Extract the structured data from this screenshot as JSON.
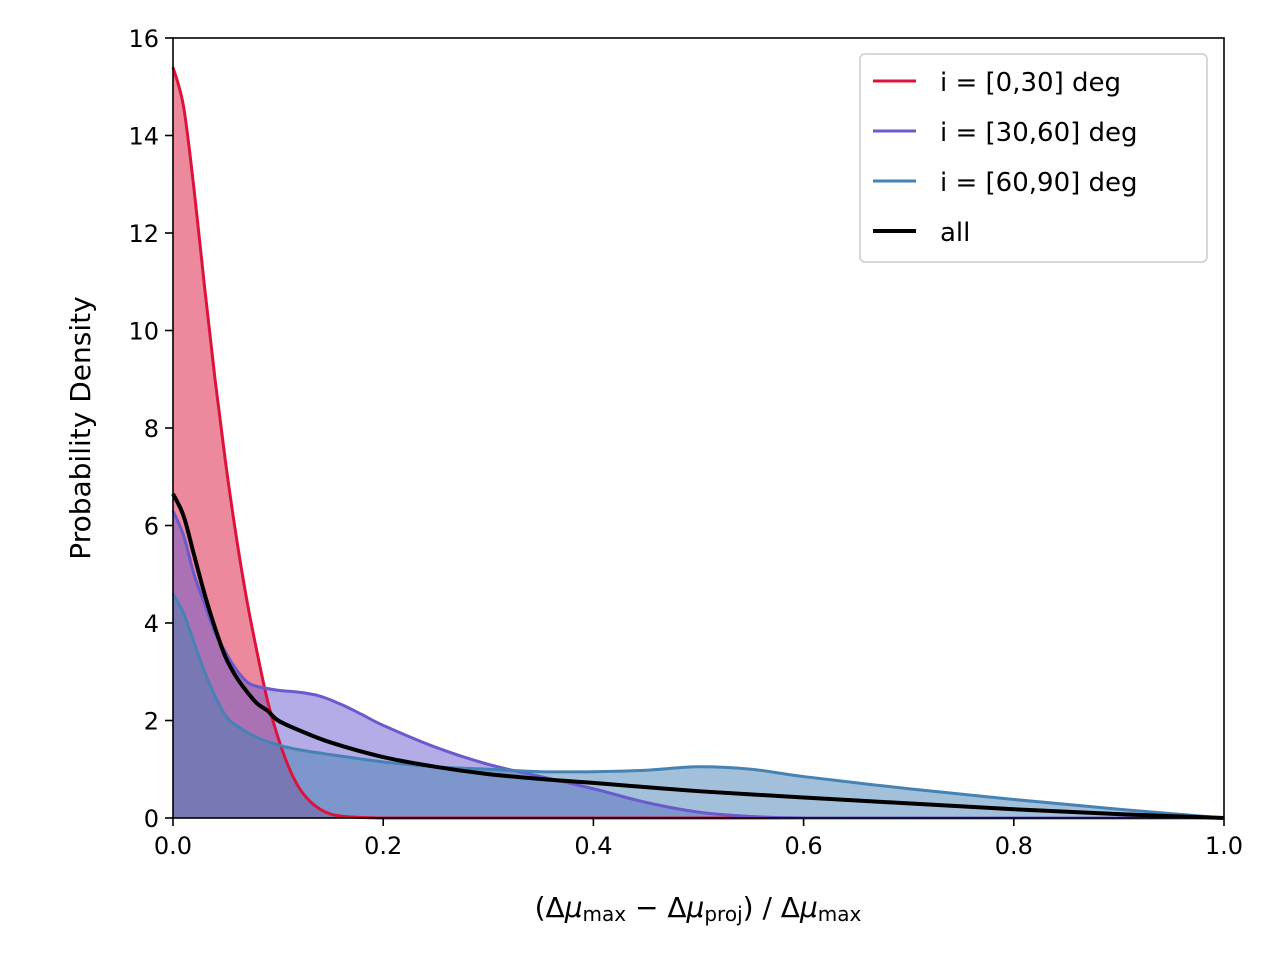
{
  "chart_data": {
    "type": "area",
    "xlabel": "(Δμ max − Δμ proj) / Δμ max",
    "xlabel_parts": {
      "open": "(Δ",
      "mu1": "μ",
      "sub_max1": "max",
      "minus": " − Δ",
      "mu2": "μ",
      "sub_proj": "proj",
      "close_div": ") / Δ",
      "mu3": "μ",
      "sub_max2": "max"
    },
    "ylabel": "Probability Density",
    "xlim": [
      0,
      1
    ],
    "ylim": [
      0,
      16
    ],
    "xticks": [
      0.0,
      0.2,
      0.4,
      0.6,
      0.8,
      1.0
    ],
    "xtick_labels": [
      "0.0",
      "0.2",
      "0.4",
      "0.6",
      "0.8",
      "1.0"
    ],
    "yticks": [
      0,
      2,
      4,
      6,
      8,
      10,
      12,
      14,
      16
    ],
    "ytick_labels": [
      "0",
      "2",
      "4",
      "6",
      "8",
      "10",
      "12",
      "14",
      "16"
    ],
    "grid": false,
    "legend_position": "top-right",
    "series": [
      {
        "name": "i = [0,30] deg",
        "color": "#dc143c",
        "fill": true,
        "x": [
          0,
          0.01,
          0.02,
          0.03,
          0.04,
          0.05,
          0.06,
          0.07,
          0.08,
          0.09,
          0.1,
          0.11,
          0.12,
          0.13,
          0.14,
          0.15,
          0.16,
          0.17,
          0.18,
          0.19,
          0.2,
          0.25,
          0.3,
          0.35,
          0.4,
          0.5,
          0.6,
          0.7,
          0.8,
          0.9,
          1.0
        ],
        "y": [
          15.4,
          14.6,
          12.9,
          10.9,
          9.0,
          7.3,
          5.8,
          4.5,
          3.4,
          2.4,
          1.65,
          1.05,
          0.62,
          0.35,
          0.18,
          0.08,
          0.04,
          0.02,
          0.01,
          0.005,
          0.0,
          0.0,
          0.0,
          0.0,
          0.0,
          0.0,
          0.0,
          0.0,
          0.0,
          0.0,
          0.0
        ]
      },
      {
        "name": "i = [30,60] deg",
        "color": "#6a5acd",
        "fill": true,
        "x": [
          0,
          0.01,
          0.02,
          0.03,
          0.04,
          0.05,
          0.06,
          0.07,
          0.08,
          0.1,
          0.12,
          0.14,
          0.16,
          0.18,
          0.2,
          0.25,
          0.3,
          0.35,
          0.4,
          0.45,
          0.5,
          0.55,
          0.6,
          0.7,
          0.8,
          0.9,
          1.0
        ],
        "y": [
          6.3,
          5.8,
          5.0,
          4.4,
          3.8,
          3.4,
          3.05,
          2.8,
          2.7,
          2.62,
          2.58,
          2.5,
          2.33,
          2.12,
          1.9,
          1.45,
          1.1,
          0.85,
          0.6,
          0.32,
          0.12,
          0.03,
          0.0,
          0.0,
          0.0,
          0.0,
          0.0
        ]
      },
      {
        "name": "i = [60,90] deg",
        "color": "#4682b4",
        "fill": true,
        "x": [
          0,
          0.01,
          0.02,
          0.03,
          0.04,
          0.05,
          0.06,
          0.08,
          0.1,
          0.12,
          0.15,
          0.2,
          0.25,
          0.3,
          0.35,
          0.4,
          0.45,
          0.5,
          0.55,
          0.6,
          0.7,
          0.8,
          0.9,
          1.0
        ],
        "y": [
          4.6,
          4.2,
          3.6,
          3.0,
          2.5,
          2.1,
          1.9,
          1.65,
          1.5,
          1.4,
          1.3,
          1.15,
          1.05,
          1.0,
          0.95,
          0.95,
          0.98,
          1.05,
          1.0,
          0.85,
          0.6,
          0.38,
          0.18,
          0.0
        ]
      },
      {
        "name": "all",
        "color": "#000000",
        "fill": false,
        "x": [
          0,
          0.01,
          0.02,
          0.03,
          0.04,
          0.05,
          0.06,
          0.07,
          0.08,
          0.09,
          0.1,
          0.12,
          0.15,
          0.2,
          0.25,
          0.3,
          0.35,
          0.4,
          0.5,
          0.6,
          0.7,
          0.8,
          0.9,
          1.0
        ],
        "y": [
          6.65,
          6.2,
          5.4,
          4.6,
          3.9,
          3.3,
          2.9,
          2.6,
          2.35,
          2.2,
          2.0,
          1.8,
          1.55,
          1.25,
          1.05,
          0.9,
          0.8,
          0.72,
          0.55,
          0.42,
          0.3,
          0.18,
          0.08,
          0.0
        ]
      }
    ]
  }
}
